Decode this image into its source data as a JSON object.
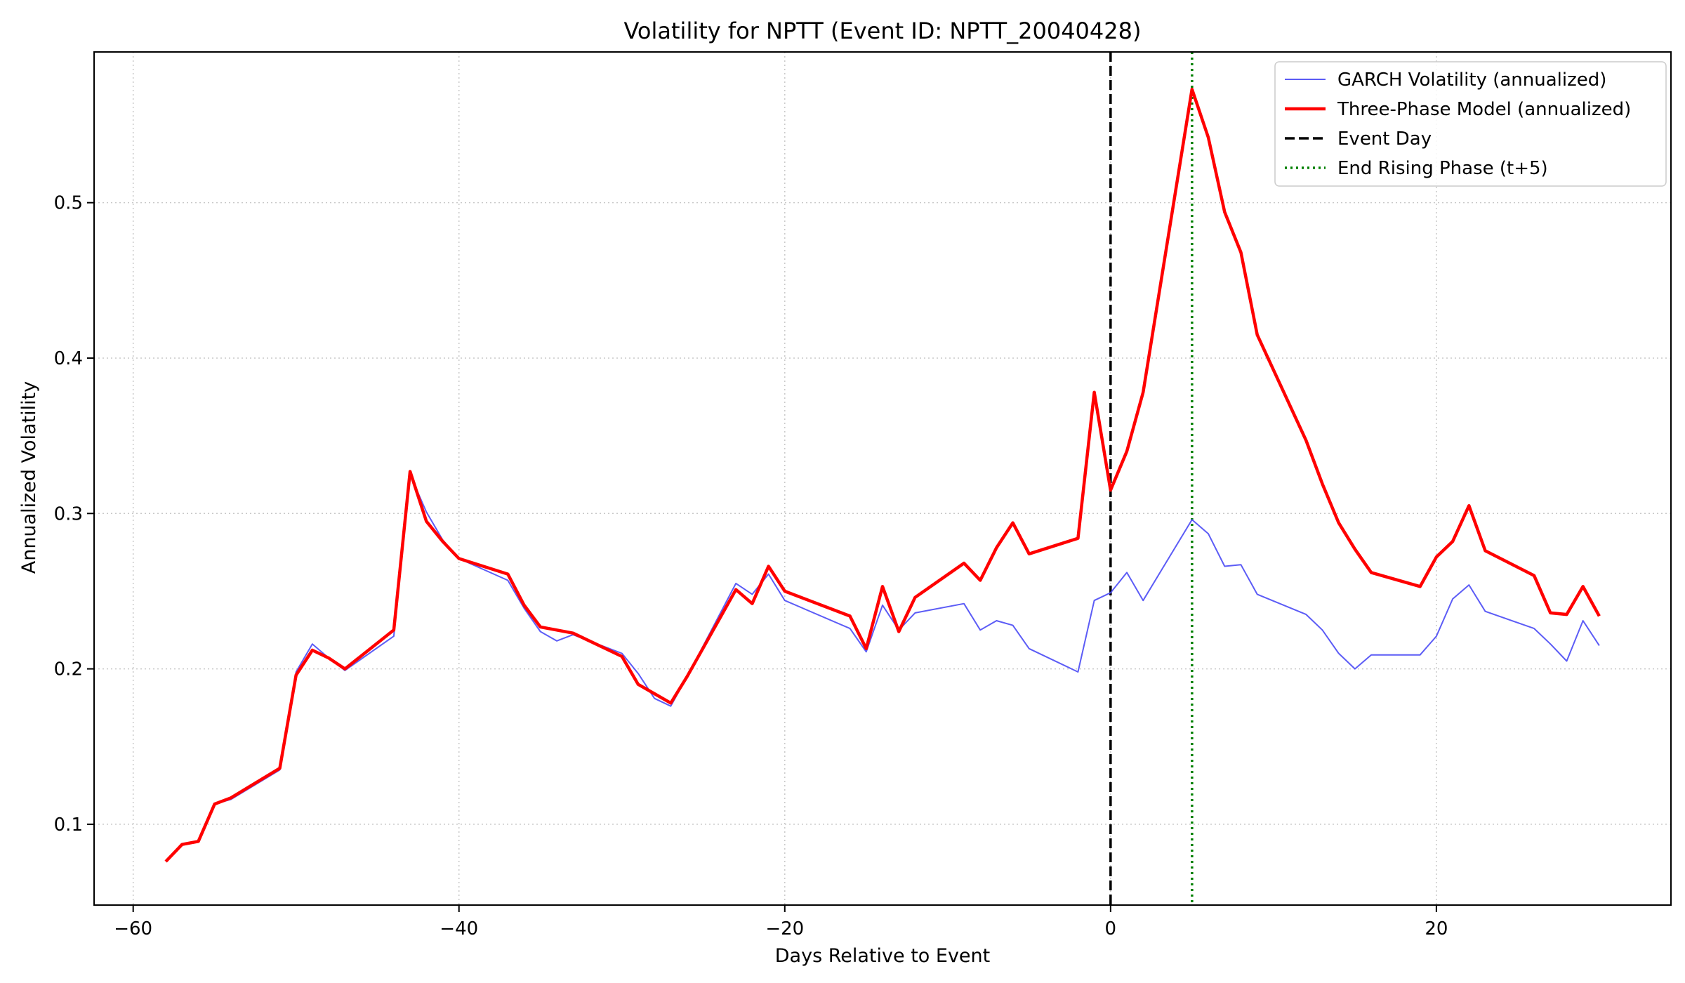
{
  "chart_data": {
    "type": "line",
    "title": "Volatility for NPTT (Event ID: NPTT_20040428)",
    "xlabel": "Days Relative to Event",
    "ylabel": "Annualized Volatility",
    "xlim": [
      -62.4,
      34.4
    ],
    "ylim": [
      0.048,
      0.597
    ],
    "xticks": [
      -60,
      -40,
      -20,
      0,
      20
    ],
    "xtick_labels": [
      "−60",
      "−40",
      "−20",
      "0",
      "20"
    ],
    "yticks": [
      0.1,
      0.2,
      0.3,
      0.4,
      0.5
    ],
    "ytick_labels": [
      "0.1",
      "0.2",
      "0.3",
      "0.4",
      "0.5"
    ],
    "grid": true,
    "legend_position": "top-right",
    "series": [
      {
        "name": "GARCH Volatility (annualized)",
        "color": "#4a4af5",
        "style": "solid-thin",
        "points": [
          [
            -58,
            0.076
          ],
          [
            -57,
            0.087
          ],
          [
            -56,
            0.089
          ],
          [
            -55,
            0.113
          ],
          [
            -54,
            0.116
          ],
          [
            -51,
            0.135
          ],
          [
            -50,
            0.198
          ],
          [
            -49,
            0.216
          ],
          [
            -48,
            0.207
          ],
          [
            -47,
            0.199
          ],
          [
            -44,
            0.221
          ],
          [
            -43,
            0.325
          ],
          [
            -42,
            0.301
          ],
          [
            -41,
            0.283
          ],
          [
            -40,
            0.271
          ],
          [
            -37,
            0.257
          ],
          [
            -36,
            0.239
          ],
          [
            -35,
            0.224
          ],
          [
            -34,
            0.218
          ],
          [
            -33,
            0.222
          ],
          [
            -30,
            0.21
          ],
          [
            -29,
            0.197
          ],
          [
            -28,
            0.181
          ],
          [
            -27,
            0.176
          ],
          [
            -26,
            0.195
          ],
          [
            -23,
            0.255
          ],
          [
            -22,
            0.248
          ],
          [
            -21,
            0.261
          ],
          [
            -20,
            0.244
          ],
          [
            -16,
            0.226
          ],
          [
            -15,
            0.211
          ],
          [
            -14,
            0.241
          ],
          [
            -13,
            0.225
          ],
          [
            -12,
            0.236
          ],
          [
            -9,
            0.242
          ],
          [
            -8,
            0.225
          ],
          [
            -7,
            0.231
          ],
          [
            -6,
            0.228
          ],
          [
            -5,
            0.213
          ],
          [
            -2,
            0.198
          ],
          [
            -1,
            0.244
          ],
          [
            0,
            0.249
          ],
          [
            1,
            0.262
          ],
          [
            2,
            0.244
          ],
          [
            5,
            0.296
          ],
          [
            6,
            0.287
          ],
          [
            7,
            0.266
          ],
          [
            8,
            0.267
          ],
          [
            9,
            0.248
          ],
          [
            12,
            0.235
          ],
          [
            13,
            0.225
          ],
          [
            14,
            0.21
          ],
          [
            15,
            0.2
          ],
          [
            16,
            0.209
          ],
          [
            19,
            0.209
          ],
          [
            20,
            0.221
          ],
          [
            21,
            0.245
          ],
          [
            22,
            0.254
          ],
          [
            23,
            0.237
          ],
          [
            26,
            0.226
          ],
          [
            27,
            0.216
          ],
          [
            28,
            0.205
          ],
          [
            29,
            0.231
          ],
          [
            30,
            0.215
          ]
        ]
      },
      {
        "name": "Three-Phase Model (annualized)",
        "color": "#ff0000",
        "style": "solid-thick",
        "points": [
          [
            -58,
            0.076
          ],
          [
            -57,
            0.087
          ],
          [
            -56,
            0.089
          ],
          [
            -55,
            0.113
          ],
          [
            -54,
            0.117
          ],
          [
            -51,
            0.136
          ],
          [
            -50,
            0.196
          ],
          [
            -49,
            0.212
          ],
          [
            -48,
            0.207
          ],
          [
            -47,
            0.2
          ],
          [
            -44,
            0.225
          ],
          [
            -43,
            0.327
          ],
          [
            -42,
            0.295
          ],
          [
            -41,
            0.282
          ],
          [
            -40,
            0.271
          ],
          [
            -37,
            0.261
          ],
          [
            -36,
            0.241
          ],
          [
            -35,
            0.227
          ],
          [
            -34,
            0.225
          ],
          [
            -33,
            0.223
          ],
          [
            -30,
            0.208
          ],
          [
            -29,
            0.19
          ],
          [
            -28,
            0.184
          ],
          [
            -27,
            0.178
          ],
          [
            -26,
            0.195
          ],
          [
            -23,
            0.251
          ],
          [
            -22,
            0.242
          ],
          [
            -21,
            0.266
          ],
          [
            -20,
            0.25
          ],
          [
            -16,
            0.234
          ],
          [
            -15,
            0.213
          ],
          [
            -14,
            0.253
          ],
          [
            -13,
            0.224
          ],
          [
            -12,
            0.246
          ],
          [
            -9,
            0.268
          ],
          [
            -8,
            0.257
          ],
          [
            -7,
            0.278
          ],
          [
            -6,
            0.294
          ],
          [
            -5,
            0.274
          ],
          [
            -2,
            0.284
          ],
          [
            -1,
            0.378
          ],
          [
            0,
            0.315
          ],
          [
            1,
            0.34
          ],
          [
            2,
            0.378
          ],
          [
            5,
            0.573
          ],
          [
            6,
            0.542
          ],
          [
            7,
            0.494
          ],
          [
            8,
            0.468
          ],
          [
            9,
            0.415
          ],
          [
            12,
            0.347
          ],
          [
            13,
            0.319
          ],
          [
            14,
            0.294
          ],
          [
            15,
            0.277
          ],
          [
            16,
            0.262
          ],
          [
            19,
            0.253
          ],
          [
            20,
            0.272
          ],
          [
            21,
            0.282
          ],
          [
            22,
            0.305
          ],
          [
            23,
            0.276
          ],
          [
            26,
            0.26
          ],
          [
            27,
            0.236
          ],
          [
            28,
            0.235
          ],
          [
            29,
            0.253
          ],
          [
            30,
            0.234
          ]
        ]
      }
    ],
    "vlines": [
      {
        "name": "Event Day",
        "x": 0,
        "color": "#000000",
        "style": "dashed"
      },
      {
        "name": "End Rising Phase (t+5)",
        "x": 5,
        "color": "#008000",
        "style": "dotted"
      }
    ]
  }
}
